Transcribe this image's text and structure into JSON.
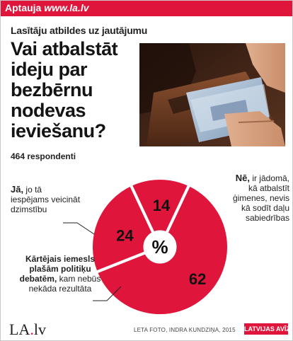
{
  "header": {
    "label": "Aptauja",
    "site": "www.la.lv"
  },
  "subtitle": "Lasītāju atbildes uz jautājumu",
  "question": "Vai atbalstāt ideju par bezbērnu nodevas ieviešanu?",
  "respondents": "464 respondenti",
  "center_symbol": "%",
  "annotations": {
    "ja_bold": "Jā,",
    "ja_rest": "jo tā iespējams veicināt dzimstību",
    "ne_bold": "Nē,",
    "ne_rest": "ir jādomā, kā atbalstīt ģimenes, nevis kā sodīt daļu sabiedrības",
    "kartejais_bold": "Kārtējais iemesls plašām politiķu debatēm,",
    "kartejais_rest": "kam nebūs nekāda rezultāta"
  },
  "footer": {
    "logo_a": "LA",
    "logo_dot": ".",
    "logo_b": "lv",
    "credit": "LETA FOTO, INDRA KUNDZIŅA, 2015",
    "brand": "LATVIJAS AVĪZE"
  },
  "colors": {
    "accent": "#e0153c",
    "text": "#141414",
    "background": "#ffffff"
  },
  "chart_data": {
    "type": "pie",
    "title": "",
    "unit": "%",
    "center_label": "%",
    "donut": true,
    "slices": [
      {
        "label": "Nē",
        "value": 62,
        "color": "#e0153c"
      },
      {
        "label": "Kārtējais iemesls plašām politiķu debatēm",
        "value": 24,
        "color": "#e0153c"
      },
      {
        "label": "Jā",
        "value": 14,
        "color": "#e0153c"
      }
    ]
  }
}
